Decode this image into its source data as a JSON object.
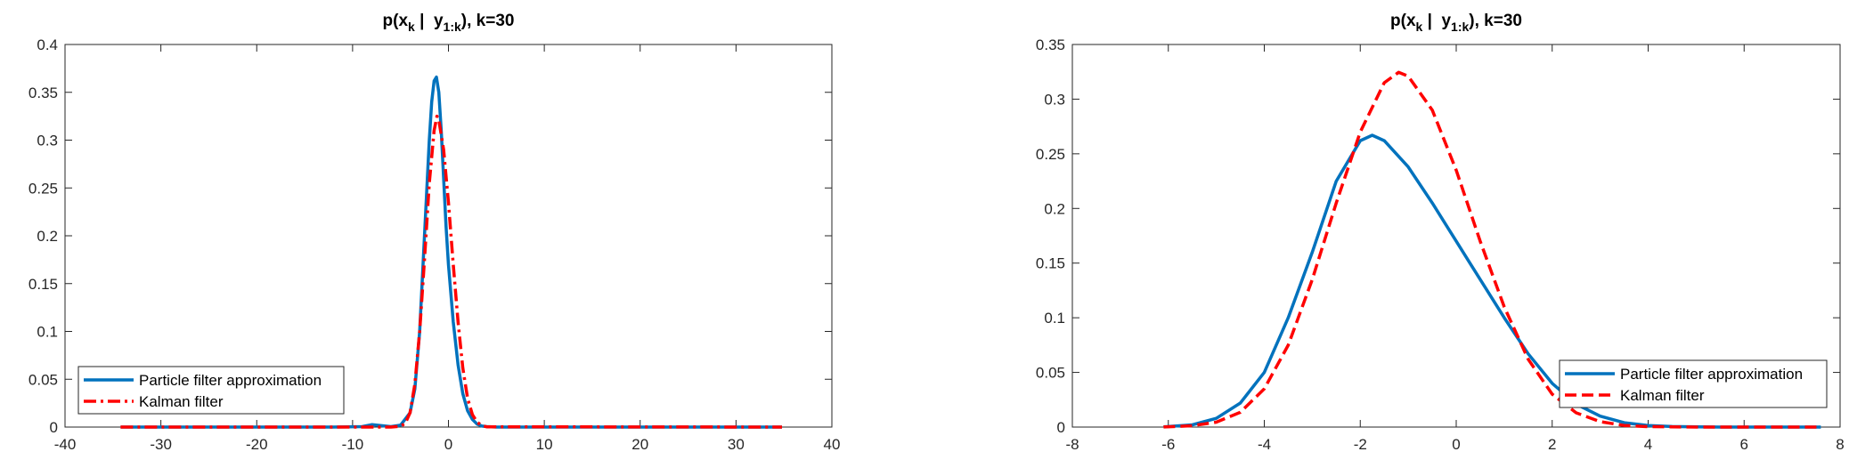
{
  "chart_data": [
    {
      "type": "line",
      "title": {
        "prefix": "p(x",
        "sub1": "k",
        "mid": " |  y",
        "sub2": "1:k",
        "suffix": "), k=30"
      },
      "xlim": [
        -40,
        40
      ],
      "ylim": [
        0,
        0.4
      ],
      "xticks": [
        -40,
        -30,
        -20,
        -10,
        0,
        10,
        20,
        30,
        40
      ],
      "yticks": [
        0,
        0.05,
        0.1,
        0.15,
        0.2,
        0.25,
        0.3,
        0.35,
        0.4
      ],
      "xtick_labels": [
        "-40",
        "-30",
        "-20",
        "-10",
        "0",
        "10",
        "20",
        "30",
        "40"
      ],
      "ytick_labels": [
        "0",
        "0.05",
        "0.1",
        "0.15",
        "0.2",
        "0.25",
        "0.3",
        "0.35",
        "0.4"
      ],
      "grid": false,
      "legend": {
        "position": "bottom-left"
      },
      "x_range": [
        -34.2,
        34.8
      ],
      "series": [
        {
          "name": "Particle filter approximation",
          "color": "#0072BD",
          "style": "solid",
          "x": [
            -34.2,
            -12,
            -9,
            -8,
            -7,
            -6,
            -5,
            -4,
            -3.5,
            -3,
            -2.5,
            -2,
            -1.75,
            -1.5,
            -1.25,
            -1,
            -0.75,
            -0.5,
            -0.25,
            0,
            0.5,
            1,
            1.5,
            2,
            2.5,
            3,
            3.5,
            4,
            5,
            34.8
          ],
          "y": [
            0,
            0,
            0.0005,
            0.0025,
            0.0015,
            0.0005,
            0.002,
            0.015,
            0.04,
            0.1,
            0.2,
            0.3,
            0.34,
            0.362,
            0.366,
            0.35,
            0.31,
            0.26,
            0.21,
            0.17,
            0.11,
            0.065,
            0.035,
            0.017,
            0.008,
            0.003,
            0.001,
            0.0005,
            0,
            0
          ]
        },
        {
          "name": "Kalman filter",
          "color": "#FF0000",
          "style": "dash-dot",
          "x": [
            -34.2,
            -6,
            -5,
            -4.5,
            -4,
            -3.5,
            -3,
            -2.5,
            -2,
            -1.5,
            -1.2,
            -1,
            -0.5,
            0,
            0.5,
            1,
            1.5,
            2,
            2.5,
            3,
            3.5,
            4,
            34.8
          ],
          "y": [
            0,
            0,
            0.0008,
            0.004,
            0.015,
            0.045,
            0.1,
            0.175,
            0.255,
            0.31,
            0.325,
            0.321,
            0.29,
            0.235,
            0.17,
            0.11,
            0.062,
            0.03,
            0.013,
            0.005,
            0.0015,
            0.0003,
            0
          ]
        }
      ]
    },
    {
      "type": "line",
      "title": {
        "prefix": "p(x",
        "sub1": "k",
        "mid": " |  y",
        "sub2": "1:k",
        "suffix": "), k=30"
      },
      "xlim": [
        -8,
        8
      ],
      "ylim": [
        0,
        0.35
      ],
      "xticks": [
        -8,
        -6,
        -4,
        -2,
        0,
        2,
        4,
        6,
        8
      ],
      "yticks": [
        0,
        0.05,
        0.1,
        0.15,
        0.2,
        0.25,
        0.3,
        0.35
      ],
      "xtick_labels": [
        "-8",
        "-6",
        "-4",
        "-2",
        "0",
        "2",
        "4",
        "6",
        "8"
      ],
      "ytick_labels": [
        "0",
        "0.05",
        "0.1",
        "0.15",
        "0.2",
        "0.25",
        "0.3",
        "0.35"
      ],
      "grid": false,
      "legend": {
        "position": "bottom-right"
      },
      "series": [
        {
          "name": "Particle filter approximation",
          "color": "#0072BD",
          "style": "solid",
          "x": [
            -6.1,
            -5.5,
            -5,
            -4.5,
            -4,
            -3.5,
            -3,
            -2.5,
            -2,
            -1.75,
            -1.5,
            -1,
            -0.5,
            0,
            0.5,
            1,
            1.5,
            2,
            2.5,
            3,
            3.5,
            4,
            4.5,
            5,
            5.5,
            6,
            7.6
          ],
          "y": [
            0.0002,
            0.002,
            0.008,
            0.022,
            0.05,
            0.1,
            0.16,
            0.225,
            0.262,
            0.267,
            0.262,
            0.238,
            0.205,
            0.17,
            0.135,
            0.1,
            0.067,
            0.04,
            0.021,
            0.01,
            0.004,
            0.0015,
            0.0005,
            0.0002,
            0,
            0,
            0
          ]
        },
        {
          "name": "Kalman filter",
          "color": "#FF0000",
          "style": "dash",
          "x": [
            -6.1,
            -5.5,
            -5,
            -4.5,
            -4,
            -3.5,
            -3,
            -2.5,
            -2,
            -1.5,
            -1.2,
            -1,
            -0.5,
            0,
            0.5,
            1,
            1.5,
            2,
            2.5,
            3,
            3.5,
            4,
            5,
            6,
            7.6
          ],
          "y": [
            0.0001,
            0.0012,
            0.0045,
            0.0135,
            0.035,
            0.075,
            0.135,
            0.205,
            0.27,
            0.315,
            0.3245,
            0.321,
            0.29,
            0.235,
            0.17,
            0.11,
            0.062,
            0.03,
            0.013,
            0.005,
            0.0015,
            0.0004,
            0,
            0,
            0
          ]
        }
      ]
    }
  ]
}
